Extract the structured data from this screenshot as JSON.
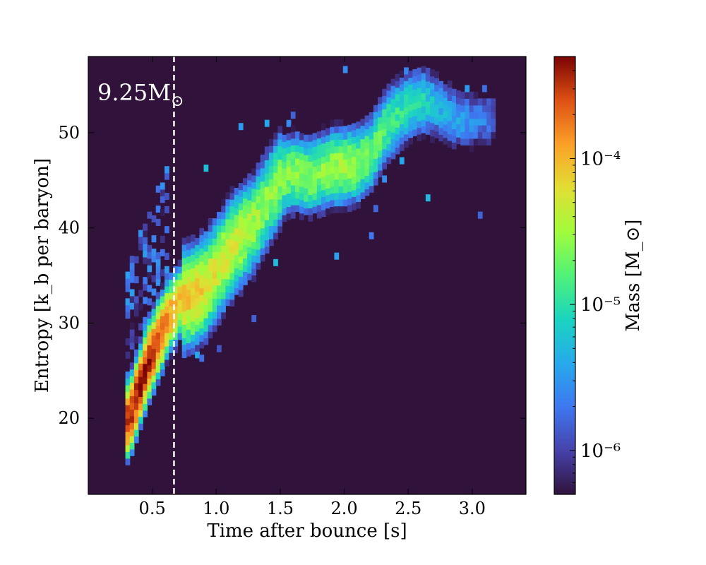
{
  "chart_data": {
    "type": "heatmap",
    "annotation": "9.25M_⊙",
    "xlabel": "Time after bounce [s]",
    "ylabel": "Entropy [k_b per baryon]",
    "xlim": [
      0.0,
      3.42
    ],
    "ylim": [
      12,
      58
    ],
    "xticks": [
      0.5,
      1.0,
      1.5,
      2.0,
      2.5,
      3.0
    ],
    "xtick_labels": [
      "0.5",
      "1.0",
      "1.5",
      "2.0",
      "2.5",
      "3.0"
    ],
    "yticks": [
      20,
      30,
      40,
      50
    ],
    "ytick_labels": [
      "20",
      "30",
      "40",
      "50"
    ],
    "vline_x": 0.67,
    "background_color": "#30123b",
    "colormap": "turbo",
    "colorbar": {
      "label": "Mass [M_⊙]",
      "scale": "log",
      "range": [
        5e-07,
        0.0005
      ],
      "ticks": [
        1e-06,
        1e-05,
        0.0001
      ],
      "tick_labels": [
        "10⁻⁶",
        "10⁻⁵",
        "10⁻⁴"
      ]
    },
    "ridge": [
      {
        "t": 0.3,
        "s": 19.5,
        "logm": -3.5
      },
      {
        "t": 0.35,
        "s": 21.5,
        "logm": -3.4
      },
      {
        "t": 0.4,
        "s": 23.5,
        "logm": -3.4
      },
      {
        "t": 0.45,
        "s": 25.5,
        "logm": -3.4
      },
      {
        "t": 0.5,
        "s": 27.0,
        "logm": -3.5
      },
      {
        "t": 0.55,
        "s": 28.5,
        "logm": -3.6
      },
      {
        "t": 0.6,
        "s": 30.0,
        "logm": -3.8
      },
      {
        "t": 0.7,
        "s": 32.0,
        "logm": -4.1
      },
      {
        "t": 0.8,
        "s": 32.5,
        "logm": -4.1
      },
      {
        "t": 0.9,
        "s": 33.5,
        "logm": -4.2
      },
      {
        "t": 1.0,
        "s": 35.5,
        "logm": -4.3
      },
      {
        "t": 1.1,
        "s": 37.5,
        "logm": -4.3
      },
      {
        "t": 1.2,
        "s": 39.0,
        "logm": -4.4
      },
      {
        "t": 1.3,
        "s": 40.5,
        "logm": -4.5
      },
      {
        "t": 1.4,
        "s": 43.0,
        "logm": -4.6
      },
      {
        "t": 1.5,
        "s": 45.0,
        "logm": -4.6
      },
      {
        "t": 1.6,
        "s": 45.5,
        "logm": -4.6
      },
      {
        "t": 1.7,
        "s": 45.0,
        "logm": -4.6
      },
      {
        "t": 1.8,
        "s": 45.5,
        "logm": -4.6
      },
      {
        "t": 1.9,
        "s": 46.0,
        "logm": -4.5
      },
      {
        "t": 2.0,
        "s": 46.0,
        "logm": -4.5
      },
      {
        "t": 2.1,
        "s": 46.5,
        "logm": -4.6
      },
      {
        "t": 2.2,
        "s": 47.5,
        "logm": -4.7
      },
      {
        "t": 2.3,
        "s": 50.0,
        "logm": -4.8
      },
      {
        "t": 2.4,
        "s": 51.5,
        "logm": -4.9
      },
      {
        "t": 2.5,
        "s": 52.5,
        "logm": -5.0
      },
      {
        "t": 2.6,
        "s": 53.0,
        "logm": -5.1
      },
      {
        "t": 2.7,
        "s": 52.5,
        "logm": -5.3
      },
      {
        "t": 2.8,
        "s": 51.5,
        "logm": -5.4
      },
      {
        "t": 2.9,
        "s": 51.0,
        "logm": -5.5
      },
      {
        "t": 3.0,
        "s": 51.0,
        "logm": -5.6
      },
      {
        "t": 3.1,
        "s": 51.0,
        "logm": -5.7
      },
      {
        "t": 3.15,
        "s": 51.0,
        "logm": -5.8
      }
    ]
  }
}
